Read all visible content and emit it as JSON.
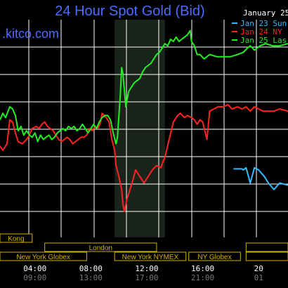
{
  "header": {
    "title": "24 Hour Spot Gold (Bid)",
    "brand": ".kitco.com",
    "date": "January 25"
  },
  "colors": {
    "background": "#000000",
    "grid": "#ffffff",
    "title": "#4a6cff",
    "session_border": "#d4b000",
    "session_text": "#d4b000",
    "highlight_band": "#1a241a"
  },
  "sessions": {
    "row1": [
      {
        "label": "Kong",
        "start": 0,
        "end": 2.3
      }
    ],
    "row2": [
      {
        "label": "London",
        "start": 3.2,
        "end": 11.2
      },
      {
        "label": "",
        "start": 17.6,
        "end": 20.6
      }
    ],
    "row3": [
      {
        "label": "New York Globex",
        "start": 0,
        "end": 6.2
      },
      {
        "label": "New York NYMEX",
        "start": 8.2,
        "end": 13.3
      },
      {
        "label": "NY Globex",
        "start": 13.5,
        "end": 17.2
      },
      {
        "label": "",
        "start": 17.6,
        "end": 20.6
      }
    ]
  },
  "chart_data": {
    "type": "line",
    "title": "24 Hour Spot Gold (Bid)",
    "x_unit": "hours (New York time)",
    "xlim": [
      0,
      20.6
    ],
    "ylim": [
      0,
      1
    ],
    "grid": true,
    "highlight_band": [
      8.2,
      11.8
    ],
    "legend": {
      "placement": "top-right"
    },
    "ticks": [
      {
        "hour": 2.5,
        "label": "04:00",
        "sub": "09:00"
      },
      {
        "hour": 6.5,
        "label": "08:00",
        "sub": "13:00"
      },
      {
        "hour": 10.5,
        "label": "12:00",
        "sub": "17:00"
      },
      {
        "hour": 14.5,
        "label": "16:00",
        "sub": "21:00"
      },
      {
        "hour": 18.5,
        "label": "20",
        "sub": "01"
      }
    ],
    "series": [
      {
        "name": "Jan 23 Sun",
        "color": "#33bbff",
        "points": [
          [
            16.7,
            0.685
          ],
          [
            17.3,
            0.685
          ],
          [
            17.4,
            0.69
          ],
          [
            17.6,
            0.68
          ],
          [
            17.9,
            0.75
          ],
          [
            18.2,
            0.68
          ],
          [
            18.5,
            0.69
          ],
          [
            18.9,
            0.72
          ],
          [
            19.2,
            0.75
          ],
          [
            19.6,
            0.78
          ],
          [
            20.0,
            0.75
          ],
          [
            20.6,
            0.76
          ]
        ]
      },
      {
        "name": "Jan 24 NY",
        "color": "#ff2222",
        "points": [
          [
            0,
            0.58
          ],
          [
            0.2,
            0.6
          ],
          [
            0.5,
            0.57
          ],
          [
            0.7,
            0.46
          ],
          [
            0.9,
            0.47
          ],
          [
            1.1,
            0.52
          ],
          [
            1.3,
            0.56
          ],
          [
            1.6,
            0.57
          ],
          [
            1.9,
            0.55
          ],
          [
            2.1,
            0.53
          ],
          [
            2.3,
            0.5
          ],
          [
            2.6,
            0.49
          ],
          [
            2.8,
            0.5
          ],
          [
            3.0,
            0.48
          ],
          [
            3.2,
            0.47
          ],
          [
            3.4,
            0.49
          ],
          [
            3.6,
            0.5
          ],
          [
            3.8,
            0.51
          ],
          [
            4.0,
            0.53
          ],
          [
            4.2,
            0.55
          ],
          [
            4.4,
            0.56
          ],
          [
            4.6,
            0.55
          ],
          [
            4.8,
            0.54
          ],
          [
            5.0,
            0.55
          ],
          [
            5.2,
            0.57
          ],
          [
            5.4,
            0.56
          ],
          [
            5.6,
            0.55
          ],
          [
            5.8,
            0.54
          ],
          [
            6.0,
            0.54
          ],
          [
            6.2,
            0.53
          ],
          [
            6.4,
            0.5
          ],
          [
            6.6,
            0.51
          ],
          [
            6.8,
            0.49
          ],
          [
            7.0,
            0.5
          ],
          [
            7.2,
            0.47
          ],
          [
            7.3,
            0.43
          ],
          [
            7.6,
            0.45
          ],
          [
            7.8,
            0.47
          ],
          [
            8.0,
            0.55
          ],
          [
            8.2,
            0.6
          ],
          [
            8.3,
            0.67
          ],
          [
            8.5,
            0.72
          ],
          [
            8.7,
            0.78
          ],
          [
            8.8,
            0.85
          ],
          [
            8.9,
            0.88
          ],
          [
            9.1,
            0.82
          ],
          [
            9.4,
            0.76
          ],
          [
            9.7,
            0.69
          ],
          [
            10.0,
            0.72
          ],
          [
            10.3,
            0.75
          ],
          [
            10.6,
            0.72
          ],
          [
            10.9,
            0.69
          ],
          [
            11.2,
            0.67
          ],
          [
            11.5,
            0.68
          ],
          [
            11.8,
            0.63
          ],
          [
            12.1,
            0.55
          ],
          [
            12.4,
            0.47
          ],
          [
            12.7,
            0.44
          ],
          [
            12.9,
            0.43
          ],
          [
            13.2,
            0.45
          ],
          [
            13.4,
            0.44
          ],
          [
            13.7,
            0.45
          ],
          [
            13.9,
            0.46
          ],
          [
            14.1,
            0.48
          ],
          [
            14.3,
            0.46
          ],
          [
            14.5,
            0.47
          ],
          [
            14.8,
            0.55
          ],
          [
            15.0,
            0.42
          ],
          [
            15.3,
            0.41
          ],
          [
            15.6,
            0.4
          ],
          [
            16.0,
            0.4
          ],
          [
            16.3,
            0.39
          ],
          [
            16.6,
            0.41
          ],
          [
            17.0,
            0.4
          ],
          [
            17.3,
            0.41
          ],
          [
            17.6,
            0.4
          ],
          [
            17.9,
            0.42
          ],
          [
            18.2,
            0.4
          ],
          [
            18.5,
            0.41
          ],
          [
            18.8,
            0.42
          ],
          [
            19.2,
            0.42
          ],
          [
            19.6,
            0.42
          ],
          [
            20.0,
            0.41
          ],
          [
            20.6,
            0.42
          ]
        ]
      },
      {
        "name": "Jan 25 Las",
        "color": "#22ee22",
        "points": [
          [
            0,
            0.46
          ],
          [
            0.2,
            0.43
          ],
          [
            0.4,
            0.45
          ],
          [
            0.7,
            0.4
          ],
          [
            0.9,
            0.41
          ],
          [
            1.1,
            0.44
          ],
          [
            1.3,
            0.51
          ],
          [
            1.5,
            0.49
          ],
          [
            1.7,
            0.53
          ],
          [
            1.9,
            0.51
          ],
          [
            2.1,
            0.53
          ],
          [
            2.3,
            0.54
          ],
          [
            2.5,
            0.52
          ],
          [
            2.7,
            0.56
          ],
          [
            2.9,
            0.53
          ],
          [
            3.1,
            0.55
          ],
          [
            3.3,
            0.54
          ],
          [
            3.5,
            0.53
          ],
          [
            3.7,
            0.55
          ],
          [
            3.9,
            0.54
          ],
          [
            4.1,
            0.52
          ],
          [
            4.3,
            0.51
          ],
          [
            4.5,
            0.5
          ],
          [
            4.7,
            0.51
          ],
          [
            4.9,
            0.49
          ],
          [
            5.1,
            0.5
          ],
          [
            5.3,
            0.49
          ],
          [
            5.5,
            0.51
          ],
          [
            5.7,
            0.5
          ],
          [
            5.9,
            0.48
          ],
          [
            6.1,
            0.5
          ],
          [
            6.3,
            0.52
          ],
          [
            6.5,
            0.5
          ],
          [
            6.7,
            0.48
          ],
          [
            6.9,
            0.5
          ],
          [
            7.1,
            0.47
          ],
          [
            7.3,
            0.45
          ],
          [
            7.5,
            0.44
          ],
          [
            7.7,
            0.44
          ],
          [
            7.9,
            0.46
          ],
          [
            8.1,
            0.52
          ],
          [
            8.3,
            0.57
          ],
          [
            8.4,
            0.54
          ],
          [
            8.6,
            0.35
          ],
          [
            8.7,
            0.22
          ],
          [
            8.8,
            0.25
          ],
          [
            9.0,
            0.4
          ],
          [
            9.2,
            0.33
          ],
          [
            9.4,
            0.31
          ],
          [
            9.6,
            0.29
          ],
          [
            9.8,
            0.28
          ],
          [
            10.0,
            0.27
          ],
          [
            10.2,
            0.24
          ],
          [
            10.4,
            0.22
          ],
          [
            10.6,
            0.21
          ],
          [
            10.8,
            0.2
          ],
          [
            11.0,
            0.18
          ],
          [
            11.2,
            0.16
          ],
          [
            11.4,
            0.15
          ],
          [
            11.6,
            0.13
          ],
          [
            11.8,
            0.11
          ],
          [
            12.0,
            0.12
          ],
          [
            12.2,
            0.09
          ],
          [
            12.4,
            0.1
          ],
          [
            12.6,
            0.08
          ],
          [
            12.8,
            0.1
          ],
          [
            13.0,
            0.09
          ],
          [
            13.2,
            0.08
          ],
          [
            13.4,
            0.07
          ],
          [
            13.6,
            0.05
          ],
          [
            13.7,
            0.1
          ],
          [
            13.9,
            0.12
          ],
          [
            14.1,
            0.16
          ],
          [
            14.3,
            0.16
          ],
          [
            14.6,
            0.18
          ],
          [
            15.0,
            0.16
          ],
          [
            15.5,
            0.17
          ],
          [
            16.0,
            0.17
          ],
          [
            16.5,
            0.17
          ],
          [
            17.0,
            0.16
          ],
          [
            17.4,
            0.15
          ],
          [
            17.7,
            0.13
          ],
          [
            17.9,
            0.12
          ],
          [
            18.2,
            0.14
          ],
          [
            18.6,
            0.12
          ],
          [
            19.0,
            0.11
          ],
          [
            19.5,
            0.12
          ],
          [
            20.0,
            0.12
          ],
          [
            20.6,
            0.11
          ]
        ]
      }
    ]
  }
}
